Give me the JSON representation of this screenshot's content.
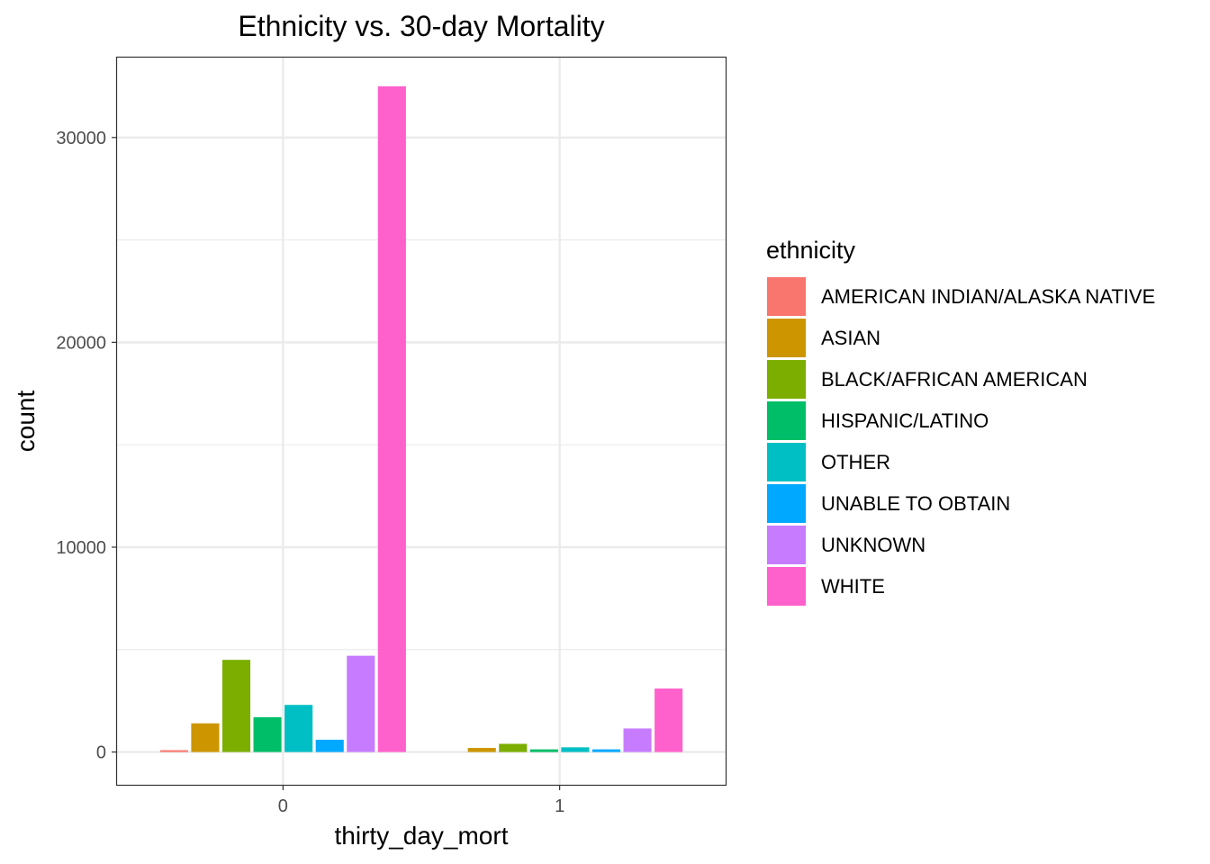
{
  "chart_data": {
    "type": "bar",
    "title": "Ethnicity vs. 30-day Mortality",
    "xlabel": "thirty_day_mort",
    "ylabel": "count",
    "categories": [
      "0",
      "1"
    ],
    "ylim": [
      -1600,
      33900
    ],
    "yticks": [
      0,
      10000,
      20000,
      30000
    ],
    "yticks_labels": [
      "0",
      "10000",
      "20000",
      "30000"
    ],
    "grid": true,
    "legend": {
      "title": "ethnicity",
      "position": "right"
    },
    "series": [
      {
        "name": "AMERICAN INDIAN/ALASKA NATIVE",
        "color": "#F8766D",
        "values": [
          90,
          0
        ]
      },
      {
        "name": "ASIAN",
        "color": "#CD9600",
        "values": [
          1400,
          200
        ]
      },
      {
        "name": "BLACK/AFRICAN AMERICAN",
        "color": "#7CAE00",
        "values": [
          4500,
          400
        ]
      },
      {
        "name": "HISPANIC/LATINO",
        "color": "#00BE67",
        "values": [
          1700,
          130
        ]
      },
      {
        "name": "OTHER",
        "color": "#00BFC4",
        "values": [
          2300,
          230
        ]
      },
      {
        "name": "UNABLE TO OBTAIN",
        "color": "#00A9FF",
        "values": [
          600,
          130
        ]
      },
      {
        "name": "UNKNOWN",
        "color": "#C77CFF",
        "values": [
          4700,
          1150
        ]
      },
      {
        "name": "WHITE",
        "color": "#FF61CC",
        "values": [
          32500,
          3100
        ]
      }
    ]
  }
}
